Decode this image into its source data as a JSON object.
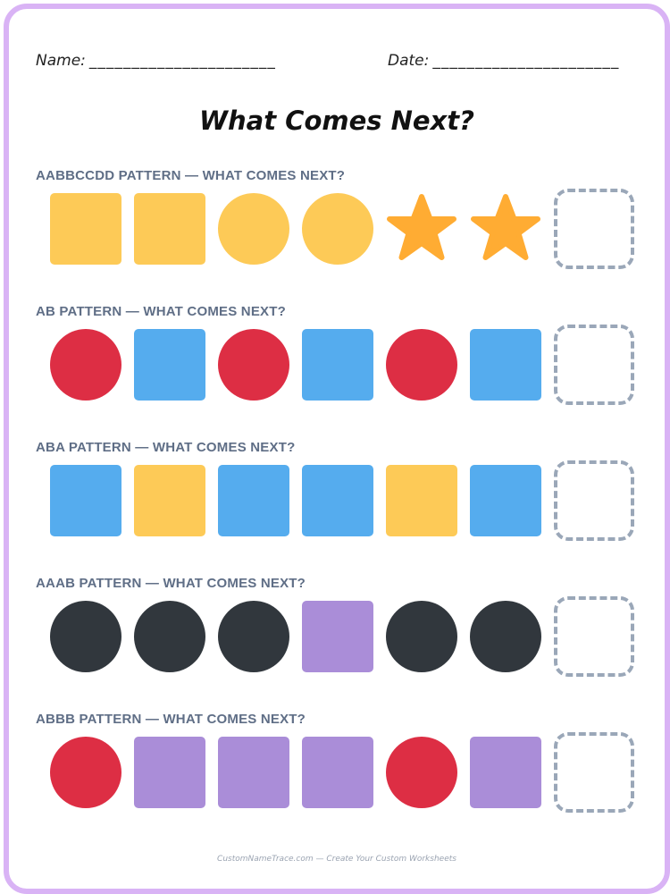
{
  "header": {
    "name_label": "Name:",
    "name_blank": "______________________",
    "date_label": "Date:",
    "date_blank": "______________________"
  },
  "title": "What Comes Next?",
  "colors": {
    "yellow": "#fdca57",
    "orange": "#ffac33",
    "red": "#dd2e44",
    "blue": "#55acee",
    "dark": "#31373d",
    "purple": "#aa8dd8",
    "dashed": "#9aa7b8",
    "border": "#d9b3f5",
    "label": "#5f6e86"
  },
  "sections": [
    {
      "label": "AABBCCDD PATTERN — WHAT COMES NEXT?",
      "items": [
        {
          "shape": "square",
          "color": "yellow"
        },
        {
          "shape": "square",
          "color": "yellow"
        },
        {
          "shape": "circle",
          "color": "yellow"
        },
        {
          "shape": "circle",
          "color": "yellow"
        },
        {
          "shape": "star",
          "color": "orange"
        },
        {
          "shape": "star",
          "color": "orange"
        }
      ]
    },
    {
      "label": "AB PATTERN — WHAT COMES NEXT?",
      "items": [
        {
          "shape": "circle",
          "color": "red"
        },
        {
          "shape": "square",
          "color": "blue"
        },
        {
          "shape": "circle",
          "color": "red"
        },
        {
          "shape": "square",
          "color": "blue"
        },
        {
          "shape": "circle",
          "color": "red"
        },
        {
          "shape": "square",
          "color": "blue"
        }
      ]
    },
    {
      "label": "ABA PATTERN — WHAT COMES NEXT?",
      "items": [
        {
          "shape": "square",
          "color": "blue"
        },
        {
          "shape": "square",
          "color": "yellow"
        },
        {
          "shape": "square",
          "color": "blue"
        },
        {
          "shape": "square",
          "color": "blue"
        },
        {
          "shape": "square",
          "color": "yellow"
        },
        {
          "shape": "square",
          "color": "blue"
        }
      ]
    },
    {
      "label": "AAAB PATTERN — WHAT COMES NEXT?",
      "items": [
        {
          "shape": "circle",
          "color": "dark"
        },
        {
          "shape": "circle",
          "color": "dark"
        },
        {
          "shape": "circle",
          "color": "dark"
        },
        {
          "shape": "square",
          "color": "purple"
        },
        {
          "shape": "circle",
          "color": "dark"
        },
        {
          "shape": "circle",
          "color": "dark"
        }
      ]
    },
    {
      "label": "ABBB PATTERN — WHAT COMES NEXT?",
      "items": [
        {
          "shape": "circle",
          "color": "red"
        },
        {
          "shape": "square",
          "color": "purple"
        },
        {
          "shape": "square",
          "color": "purple"
        },
        {
          "shape": "square",
          "color": "purple"
        },
        {
          "shape": "circle",
          "color": "red"
        },
        {
          "shape": "square",
          "color": "purple"
        }
      ]
    }
  ],
  "footer": "CustomNameTrace.com — Create Your Custom Worksheets"
}
